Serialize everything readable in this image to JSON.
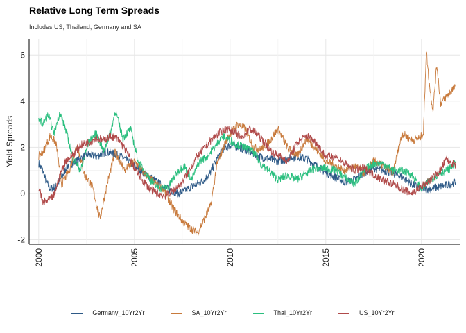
{
  "title": "Relative Long Term Spreads",
  "subtitle": "Includes US, Thailand, Germany and SA",
  "chart_data": {
    "type": "line",
    "title": "Relative Long Term Spreads",
    "subtitle": "Includes US, Thailand, Germany and SA",
    "xlabel": "",
    "ylabel": "Yield Spreads",
    "xlim": [
      1999.5,
      2022.0
    ],
    "ylim": [
      -2.2,
      6.7
    ],
    "x_ticks": [
      2000,
      2005,
      2010,
      2015,
      2020
    ],
    "y_ticks": [
      -2,
      0,
      2,
      4,
      6
    ],
    "x_tick_rotation": -90,
    "grid": true,
    "legend_position": "bottom",
    "series": [
      {
        "name": "Germany_10Yr2Yr",
        "color": "#2E5A87",
        "x": [
          2000.0,
          2000.2,
          2000.4,
          2000.6,
          2000.9,
          2001.2,
          2001.5,
          2002.0,
          2002.5,
          2003.0,
          2003.5,
          2004.0,
          2004.5,
          2005.0,
          2005.5,
          2006.0,
          2006.5,
          2007.0,
          2007.3,
          2007.6,
          2008.0,
          2008.5,
          2008.9,
          2009.2,
          2009.6,
          2010.0,
          2010.5,
          2011.0,
          2011.5,
          2012.0,
          2012.5,
          2013.0,
          2013.5,
          2014.0,
          2014.5,
          2015.0,
          2015.5,
          2016.0,
          2016.5,
          2017.0,
          2017.5,
          2018.0,
          2018.5,
          2019.0,
          2019.5,
          2020.0,
          2020.5,
          2021.0,
          2021.5,
          2021.8
        ],
        "values": [
          1.3,
          1.0,
          0.5,
          0.2,
          0.3,
          0.7,
          1.2,
          1.4,
          1.7,
          1.6,
          1.8,
          1.7,
          1.5,
          1.2,
          0.9,
          0.6,
          0.3,
          0.1,
          0.0,
          0.1,
          0.3,
          0.5,
          0.8,
          1.3,
          1.9,
          2.1,
          2.0,
          1.8,
          1.6,
          1.5,
          1.4,
          1.5,
          1.6,
          1.5,
          1.2,
          0.9,
          0.7,
          0.5,
          0.6,
          0.9,
          1.1,
          1.0,
          0.9,
          0.7,
          0.4,
          0.2,
          0.2,
          0.3,
          0.4,
          0.5
        ]
      },
      {
        "name": "SA_10Yr2Yr",
        "color": "#C87A3C",
        "x": [
          2000.0,
          2000.3,
          2000.6,
          2000.9,
          2001.2,
          2001.6,
          2002.0,
          2002.4,
          2002.8,
          2003.2,
          2003.6,
          2004.0,
          2004.5,
          2005.0,
          2005.5,
          2006.0,
          2006.5,
          2007.0,
          2007.5,
          2007.9,
          2008.3,
          2008.6,
          2009.0,
          2009.3,
          2009.7,
          2010.0,
          2010.4,
          2010.8,
          2011.2,
          2011.6,
          2012.0,
          2012.5,
          2013.0,
          2013.5,
          2014.0,
          2014.5,
          2015.0,
          2015.5,
          2016.0,
          2016.5,
          2017.0,
          2017.5,
          2018.0,
          2018.5,
          2019.0,
          2019.5,
          2019.9,
          2020.1,
          2020.25,
          2020.4,
          2020.6,
          2020.8,
          2021.0,
          2021.3,
          2021.6,
          2021.8
        ],
        "values": [
          1.6,
          1.9,
          2.5,
          2.2,
          0.4,
          1.0,
          2.1,
          0.8,
          0.3,
          -1.1,
          0.5,
          1.8,
          1.0,
          1.4,
          0.9,
          0.5,
          0.2,
          -0.6,
          -1.2,
          -1.5,
          -1.7,
          -1.2,
          -0.5,
          1.2,
          2.1,
          2.6,
          3.0,
          2.8,
          2.0,
          1.9,
          2.2,
          2.8,
          2.0,
          1.6,
          2.4,
          1.9,
          1.4,
          1.2,
          1.0,
          1.2,
          0.9,
          1.4,
          1.2,
          0.9,
          2.6,
          2.3,
          2.4,
          2.6,
          6.2,
          4.8,
          3.6,
          5.6,
          3.9,
          4.2,
          4.5,
          4.6
        ]
      },
      {
        "name": "Thai_10Yr2Yr",
        "color": "#2BBF7F",
        "x": [
          2000.0,
          2000.2,
          2000.5,
          2000.8,
          2001.1,
          2001.4,
          2001.8,
          2002.2,
          2002.6,
          2003.0,
          2003.4,
          2003.8,
          2004.0,
          2004.4,
          2004.8,
          2005.2,
          2005.6,
          2006.0,
          2006.4,
          2006.8,
          2007.2,
          2007.6,
          2008.0,
          2008.4,
          2008.8,
          2009.2,
          2009.6,
          2010.0,
          2010.4,
          2010.8,
          2011.2,
          2011.6,
          2012.0,
          2012.5,
          2013.0,
          2013.5,
          2014.0,
          2014.5,
          2015.0,
          2015.5,
          2016.0,
          2016.5,
          2017.0,
          2017.5,
          2018.0,
          2018.5,
          2019.0,
          2019.5,
          2020.0,
          2020.5,
          2021.0,
          2021.5,
          2021.8
        ],
        "values": [
          3.3,
          3.0,
          3.4,
          2.6,
          3.5,
          2.8,
          1.5,
          1.0,
          2.2,
          2.6,
          1.8,
          2.8,
          3.6,
          2.4,
          2.8,
          1.4,
          0.9,
          0.4,
          0.2,
          0.3,
          0.9,
          1.2,
          0.6,
          1.4,
          1.6,
          2.0,
          2.5,
          2.3,
          2.1,
          2.0,
          1.8,
          1.3,
          1.0,
          0.6,
          0.8,
          0.6,
          0.9,
          1.1,
          1.1,
          1.0,
          0.7,
          0.4,
          1.0,
          1.3,
          1.3,
          1.0,
          1.0,
          0.8,
          0.2,
          0.6,
          0.9,
          1.1,
          1.3
        ]
      },
      {
        "name": "US_10Yr2Yr",
        "color": "#B04A4A",
        "x": [
          2000.0,
          2000.2,
          2000.5,
          2000.8,
          2001.1,
          2001.4,
          2001.8,
          2002.2,
          2002.6,
          2003.0,
          2003.4,
          2003.8,
          2004.2,
          2004.6,
          2005.0,
          2005.4,
          2005.8,
          2006.2,
          2006.6,
          2007.0,
          2007.4,
          2007.8,
          2008.2,
          2008.6,
          2009.0,
          2009.4,
          2009.8,
          2010.2,
          2010.6,
          2011.0,
          2011.4,
          2011.8,
          2012.2,
          2012.6,
          2013.0,
          2013.5,
          2014.0,
          2014.5,
          2015.0,
          2015.5,
          2016.0,
          2016.5,
          2017.0,
          2017.5,
          2018.0,
          2018.5,
          2019.0,
          2019.5,
          2020.0,
          2020.5,
          2021.0,
          2021.3,
          2021.6,
          2021.8
        ],
        "values": [
          0.3,
          -0.4,
          -0.3,
          -0.1,
          0.8,
          1.4,
          1.7,
          2.1,
          2.2,
          2.4,
          2.3,
          2.5,
          2.3,
          1.8,
          1.1,
          0.6,
          0.2,
          0.0,
          -0.1,
          0.1,
          0.4,
          0.9,
          1.5,
          1.9,
          2.3,
          2.6,
          2.8,
          2.7,
          2.4,
          2.8,
          2.6,
          2.2,
          1.8,
          1.6,
          1.4,
          2.2,
          2.5,
          2.2,
          1.6,
          1.6,
          1.3,
          1.0,
          1.1,
          0.8,
          0.6,
          0.4,
          0.2,
          0.0,
          0.3,
          0.6,
          1.0,
          1.5,
          1.3,
          1.2
        ]
      }
    ]
  }
}
